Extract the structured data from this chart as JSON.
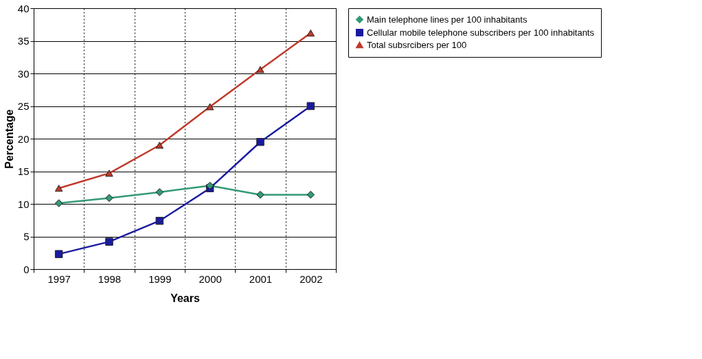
{
  "chart_data": {
    "type": "line",
    "xlabel": "Years",
    "ylabel": "Percentage",
    "categories": [
      "1997",
      "1998",
      "1999",
      "2000",
      "2001",
      "2002"
    ],
    "ylim": [
      0,
      40
    ],
    "yticks": [
      0,
      5,
      10,
      15,
      20,
      25,
      30,
      35,
      40
    ],
    "grid": true,
    "legend": "right",
    "series": [
      {
        "name": "Main telephone lines per 100 inhabitants",
        "color": "#339977",
        "marker": "diamond",
        "values": [
          10.1,
          10.9,
          11.8,
          12.8,
          11.4,
          11.4
        ]
      },
      {
        "name": "Cellular mobile telephone subscribers per 100 inhabitants",
        "color": "#1a1aa0",
        "marker": "square",
        "values": [
          2.3,
          4.2,
          7.4,
          12.4,
          19.5,
          25.0
        ]
      },
      {
        "name": "Total subsrcibers per 100",
        "color": "#c0392b",
        "marker": "triangle",
        "values": [
          12.4,
          14.7,
          19.0,
          24.9,
          30.6,
          36.2
        ]
      }
    ]
  }
}
